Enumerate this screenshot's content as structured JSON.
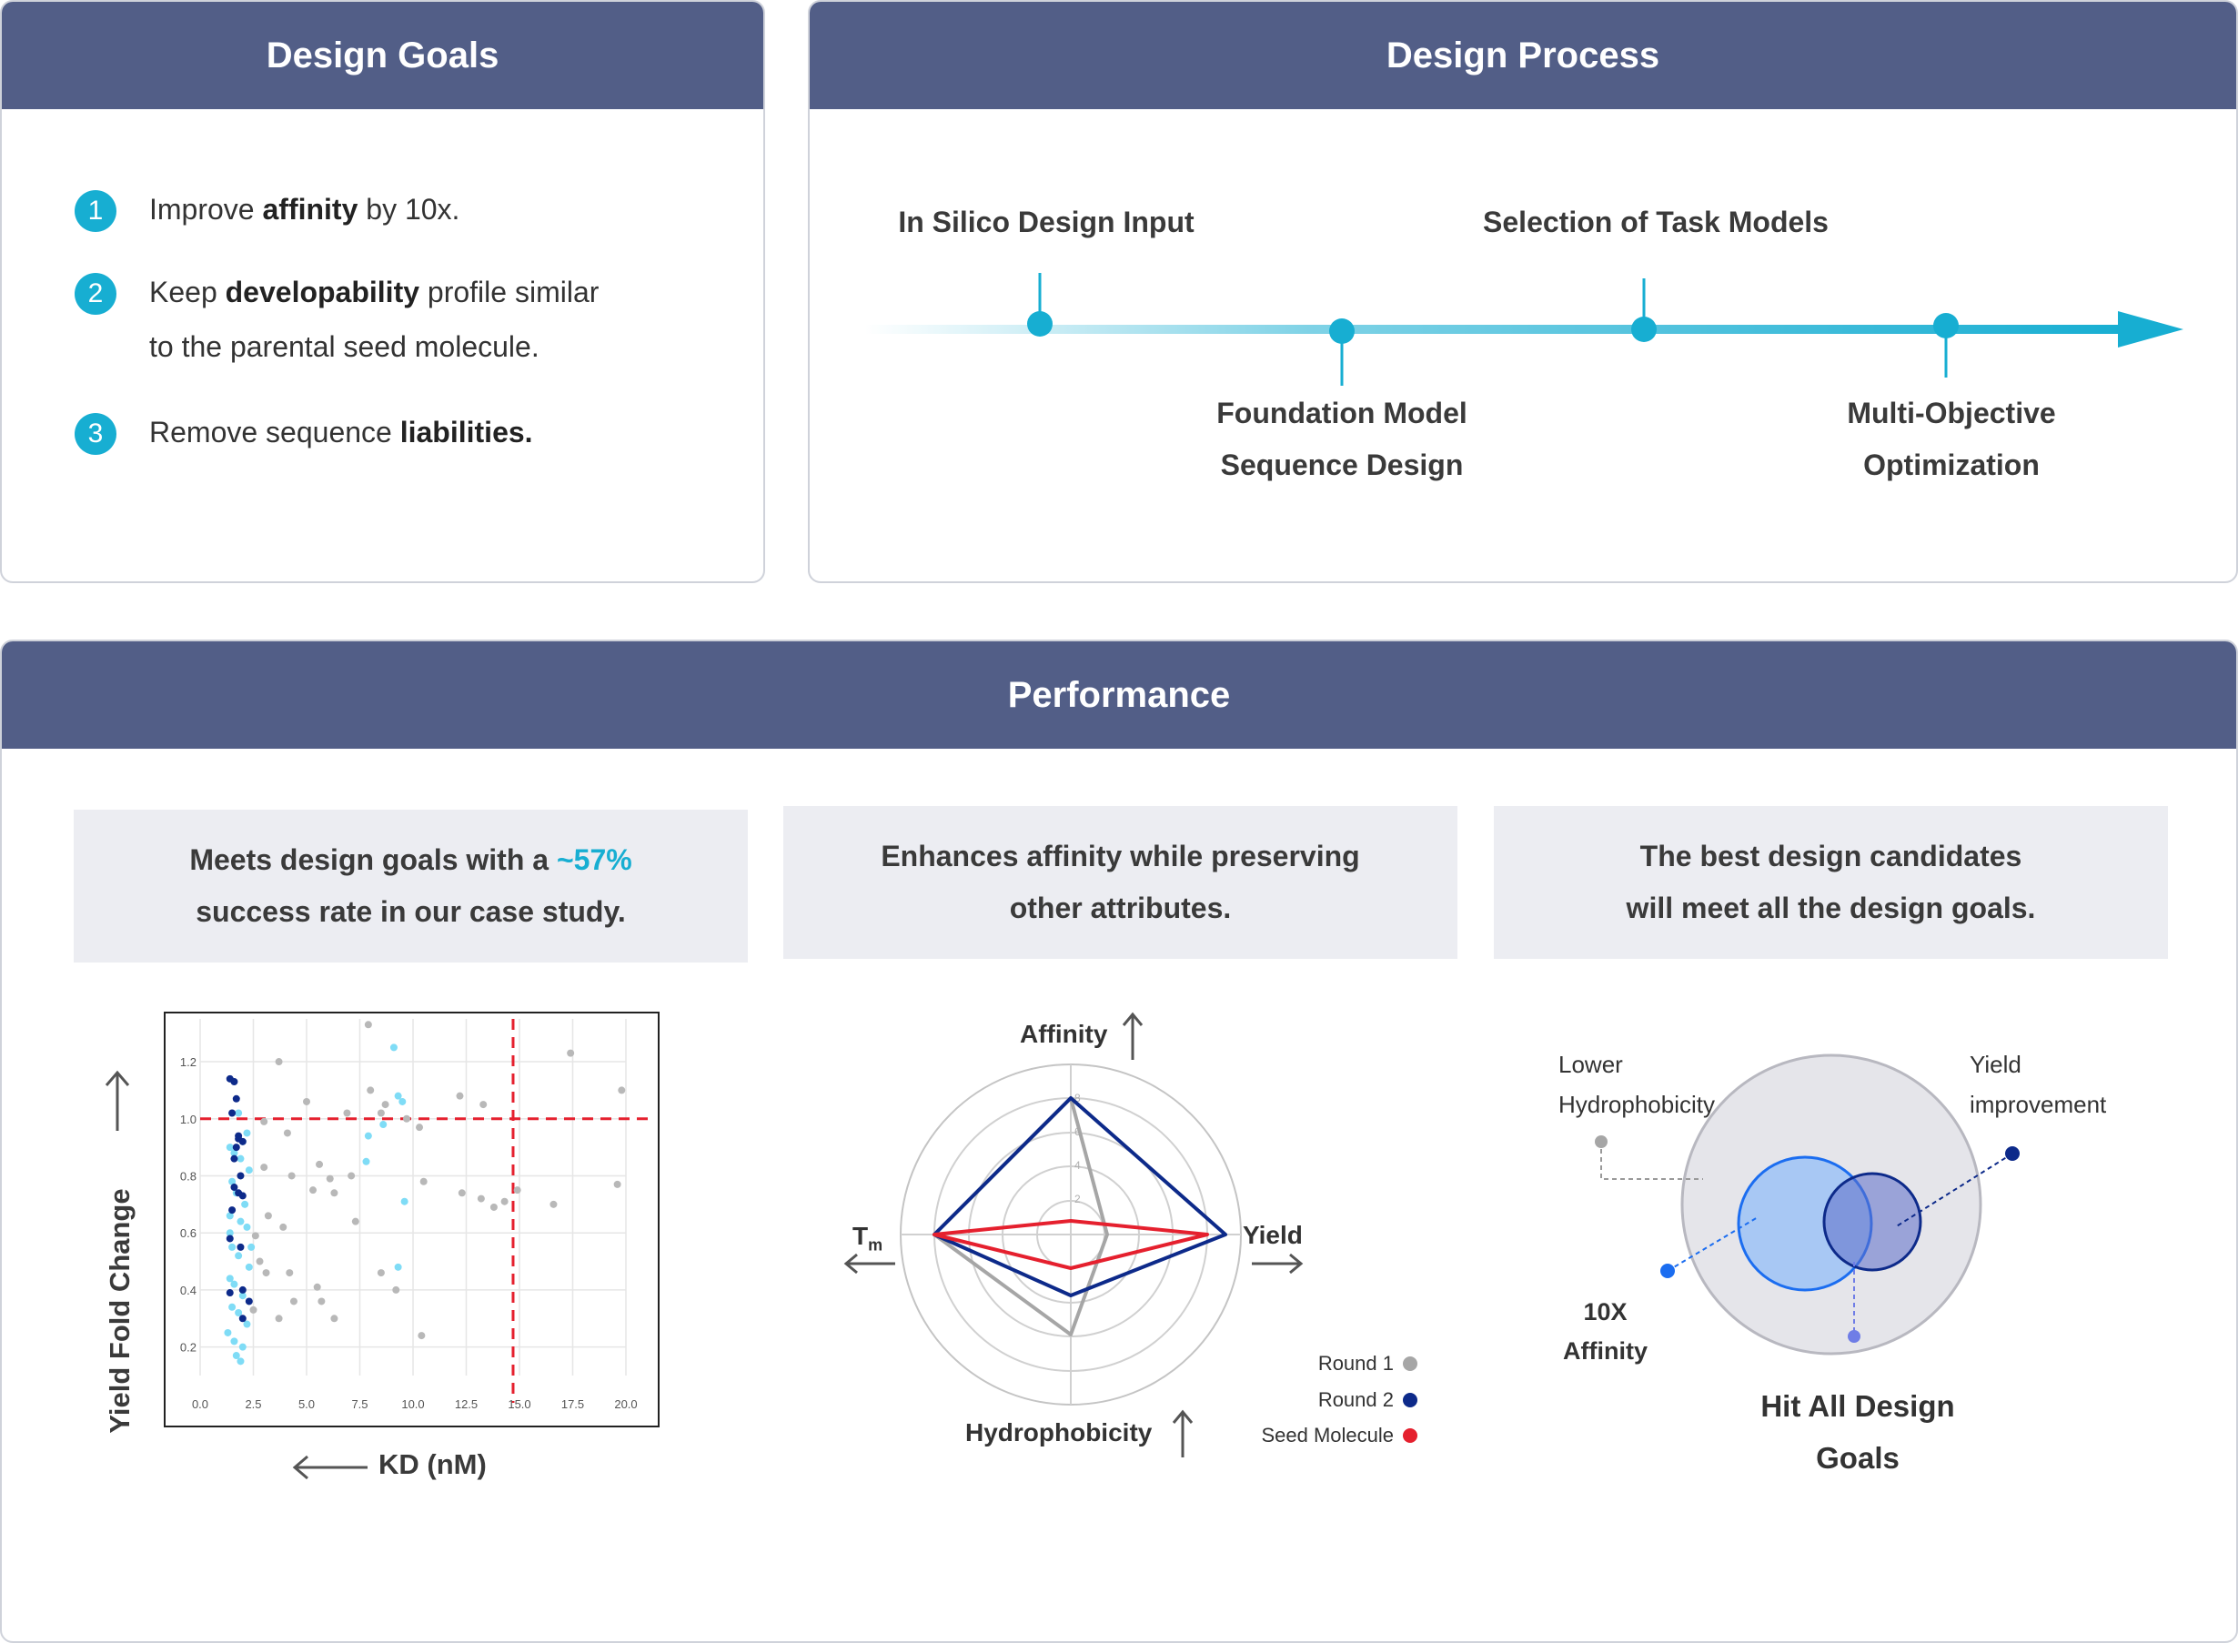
{
  "design_goals": {
    "title": "Design Goals",
    "items": [
      {
        "num": "1",
        "pre": "Improve ",
        "bold": "affinity",
        "post": " by 10x."
      },
      {
        "num": "2",
        "pre": "Keep ",
        "bold": "developability",
        "post": " profile similar",
        "line2": "to the parental seed molecule."
      },
      {
        "num": "3",
        "pre": "Remove sequence ",
        "bold": "liabilities.",
        "post": ""
      }
    ]
  },
  "design_process": {
    "title": "Design Process",
    "steps": [
      {
        "line1": "In Silico Design Input"
      },
      {
        "line1": "Foundation Model",
        "line2": "Sequence Design"
      },
      {
        "line1": "Selection of Task Models"
      },
      {
        "line1": "Multi-Objective",
        "line2": "Optimization"
      }
    ],
    "colors": {
      "accent": "#17aed2"
    }
  },
  "performance": {
    "title": "Performance",
    "panels": [
      {
        "line1_pre": "Meets design goals with a ",
        "line1_accent": "~57%",
        "line2": "success rate in our case study."
      },
      {
        "line1": "Enhances affinity while preserving",
        "line2": "other attributes."
      },
      {
        "line1": "The best design candidates",
        "line2": "will meet all the design goals."
      }
    ]
  },
  "scatter": {
    "ylabel": "Yield Fold Change",
    "xlabel": "KD (nM)"
  },
  "radar": {
    "axes": {
      "top": "Affinity",
      "right": "Yield",
      "bottom": "Hydrophobicity",
      "left_main": "T",
      "left_sub": "m"
    },
    "ring_labels": [
      "8",
      "6",
      "4",
      "2"
    ],
    "legend": [
      {
        "label": "Round 1",
        "color": "#a6a6a6"
      },
      {
        "label": "Round 2",
        "color": "#0d2a8a"
      },
      {
        "label": "Seed Molecule",
        "color": "#e5202e"
      }
    ]
  },
  "venn": {
    "lower_hydro": {
      "line1": "Lower",
      "line2": "Hydrophobicity"
    },
    "yield_improve": {
      "line1": "Yield",
      "line2": "improvement"
    },
    "affinity": {
      "line1": "10X",
      "line2": "Affinity"
    },
    "hit_all": {
      "line1": "Hit All Design",
      "line2": "Goals"
    }
  },
  "chart_data": {
    "type": "scatter",
    "xlabel": "KD (nM)",
    "ylabel": "Yield Fold Change",
    "xlim": [
      0,
      20
    ],
    "ylim": [
      0.1,
      1.35
    ],
    "x_ticks": [
      "0.0",
      "2.5",
      "5.0",
      "7.5",
      "10.0",
      "12.5",
      "15.0",
      "17.5",
      "20.0"
    ],
    "y_ticks": [
      "0.2",
      "0.4",
      "0.6",
      "0.8",
      "1.0",
      "1.2"
    ],
    "thresholds": {
      "x": 14.7,
      "y": 1.0
    },
    "grid": true,
    "series": [
      {
        "color": "#b8b8b8",
        "points": [
          [
            3.7,
            1.2
          ],
          [
            7.9,
            1.33
          ],
          [
            17.4,
            1.23
          ],
          [
            19.8,
            1.1
          ],
          [
            5.0,
            1.06
          ],
          [
            6.9,
            1.02
          ],
          [
            8.0,
            1.1
          ],
          [
            8.7,
            1.05
          ],
          [
            12.2,
            1.08
          ],
          [
            13.3,
            1.05
          ],
          [
            9.7,
            1.0
          ],
          [
            10.3,
            0.97
          ],
          [
            4.1,
            0.95
          ],
          [
            4.3,
            0.8
          ],
          [
            5.6,
            0.84
          ],
          [
            6.1,
            0.79
          ],
          [
            7.1,
            0.8
          ],
          [
            6.3,
            0.74
          ],
          [
            10.5,
            0.78
          ],
          [
            12.3,
            0.74
          ],
          [
            13.2,
            0.72
          ],
          [
            13.8,
            0.69
          ],
          [
            14.3,
            0.71
          ],
          [
            14.9,
            0.75
          ],
          [
            16.6,
            0.7
          ],
          [
            19.6,
            0.77
          ],
          [
            3.0,
            0.99
          ],
          [
            3.2,
            0.66
          ],
          [
            3.9,
            0.62
          ],
          [
            4.2,
            0.46
          ],
          [
            4.4,
            0.36
          ],
          [
            5.5,
            0.41
          ],
          [
            5.7,
            0.36
          ],
          [
            6.3,
            0.3
          ],
          [
            3.1,
            0.46
          ],
          [
            2.8,
            0.5
          ],
          [
            9.2,
            0.4
          ],
          [
            8.5,
            0.46
          ],
          [
            10.4,
            0.24
          ],
          [
            3.7,
            0.3
          ],
          [
            2.5,
            0.33
          ],
          [
            5.3,
            0.75
          ],
          [
            7.3,
            0.64
          ],
          [
            3.0,
            0.83
          ],
          [
            2.6,
            0.59
          ],
          [
            8.5,
            1.02
          ]
        ]
      },
      {
        "color": "#7fdcf6",
        "points": [
          [
            9.1,
            1.25
          ],
          [
            9.3,
            1.08
          ],
          [
            9.5,
            1.06
          ],
          [
            8.6,
            0.98
          ],
          [
            7.9,
            0.94
          ],
          [
            7.8,
            0.85
          ],
          [
            9.6,
            0.71
          ],
          [
            9.3,
            0.48
          ],
          [
            1.8,
            1.02
          ],
          [
            2.2,
            0.95
          ],
          [
            1.4,
            0.9
          ],
          [
            1.9,
            0.86
          ],
          [
            2.3,
            0.82
          ],
          [
            1.5,
            0.78
          ],
          [
            1.7,
            0.74
          ],
          [
            2.1,
            0.7
          ],
          [
            1.4,
            0.66
          ],
          [
            1.9,
            0.64
          ],
          [
            2.2,
            0.62
          ],
          [
            1.5,
            0.55
          ],
          [
            1.8,
            0.52
          ],
          [
            2.3,
            0.48
          ],
          [
            1.4,
            0.44
          ],
          [
            1.6,
            0.42
          ],
          [
            2.0,
            0.38
          ],
          [
            1.5,
            0.34
          ],
          [
            1.8,
            0.32
          ],
          [
            2.2,
            0.28
          ],
          [
            1.3,
            0.25
          ],
          [
            1.6,
            0.22
          ],
          [
            2.0,
            0.2
          ],
          [
            1.7,
            0.17
          ],
          [
            1.9,
            0.15
          ],
          [
            1.4,
            0.6
          ],
          [
            2.4,
            0.55
          ],
          [
            1.6,
            0.88
          ],
          [
            2.0,
            0.92
          ]
        ]
      },
      {
        "color": "#0d2a8a",
        "points": [
          [
            1.4,
            1.14
          ],
          [
            1.6,
            1.13
          ],
          [
            1.7,
            1.07
          ],
          [
            1.5,
            1.02
          ],
          [
            1.8,
            0.94
          ],
          [
            1.7,
            0.9
          ],
          [
            2.0,
            0.92
          ],
          [
            1.6,
            0.86
          ],
          [
            1.9,
            0.8
          ],
          [
            1.6,
            0.76
          ],
          [
            1.8,
            0.74
          ],
          [
            2.0,
            0.73
          ],
          [
            1.5,
            0.68
          ],
          [
            1.4,
            0.58
          ],
          [
            1.9,
            0.55
          ],
          [
            2.0,
            0.4
          ],
          [
            1.4,
            0.39
          ],
          [
            2.3,
            0.36
          ],
          [
            2.0,
            0.3
          ],
          [
            1.8,
            0.93
          ]
        ]
      }
    ]
  }
}
